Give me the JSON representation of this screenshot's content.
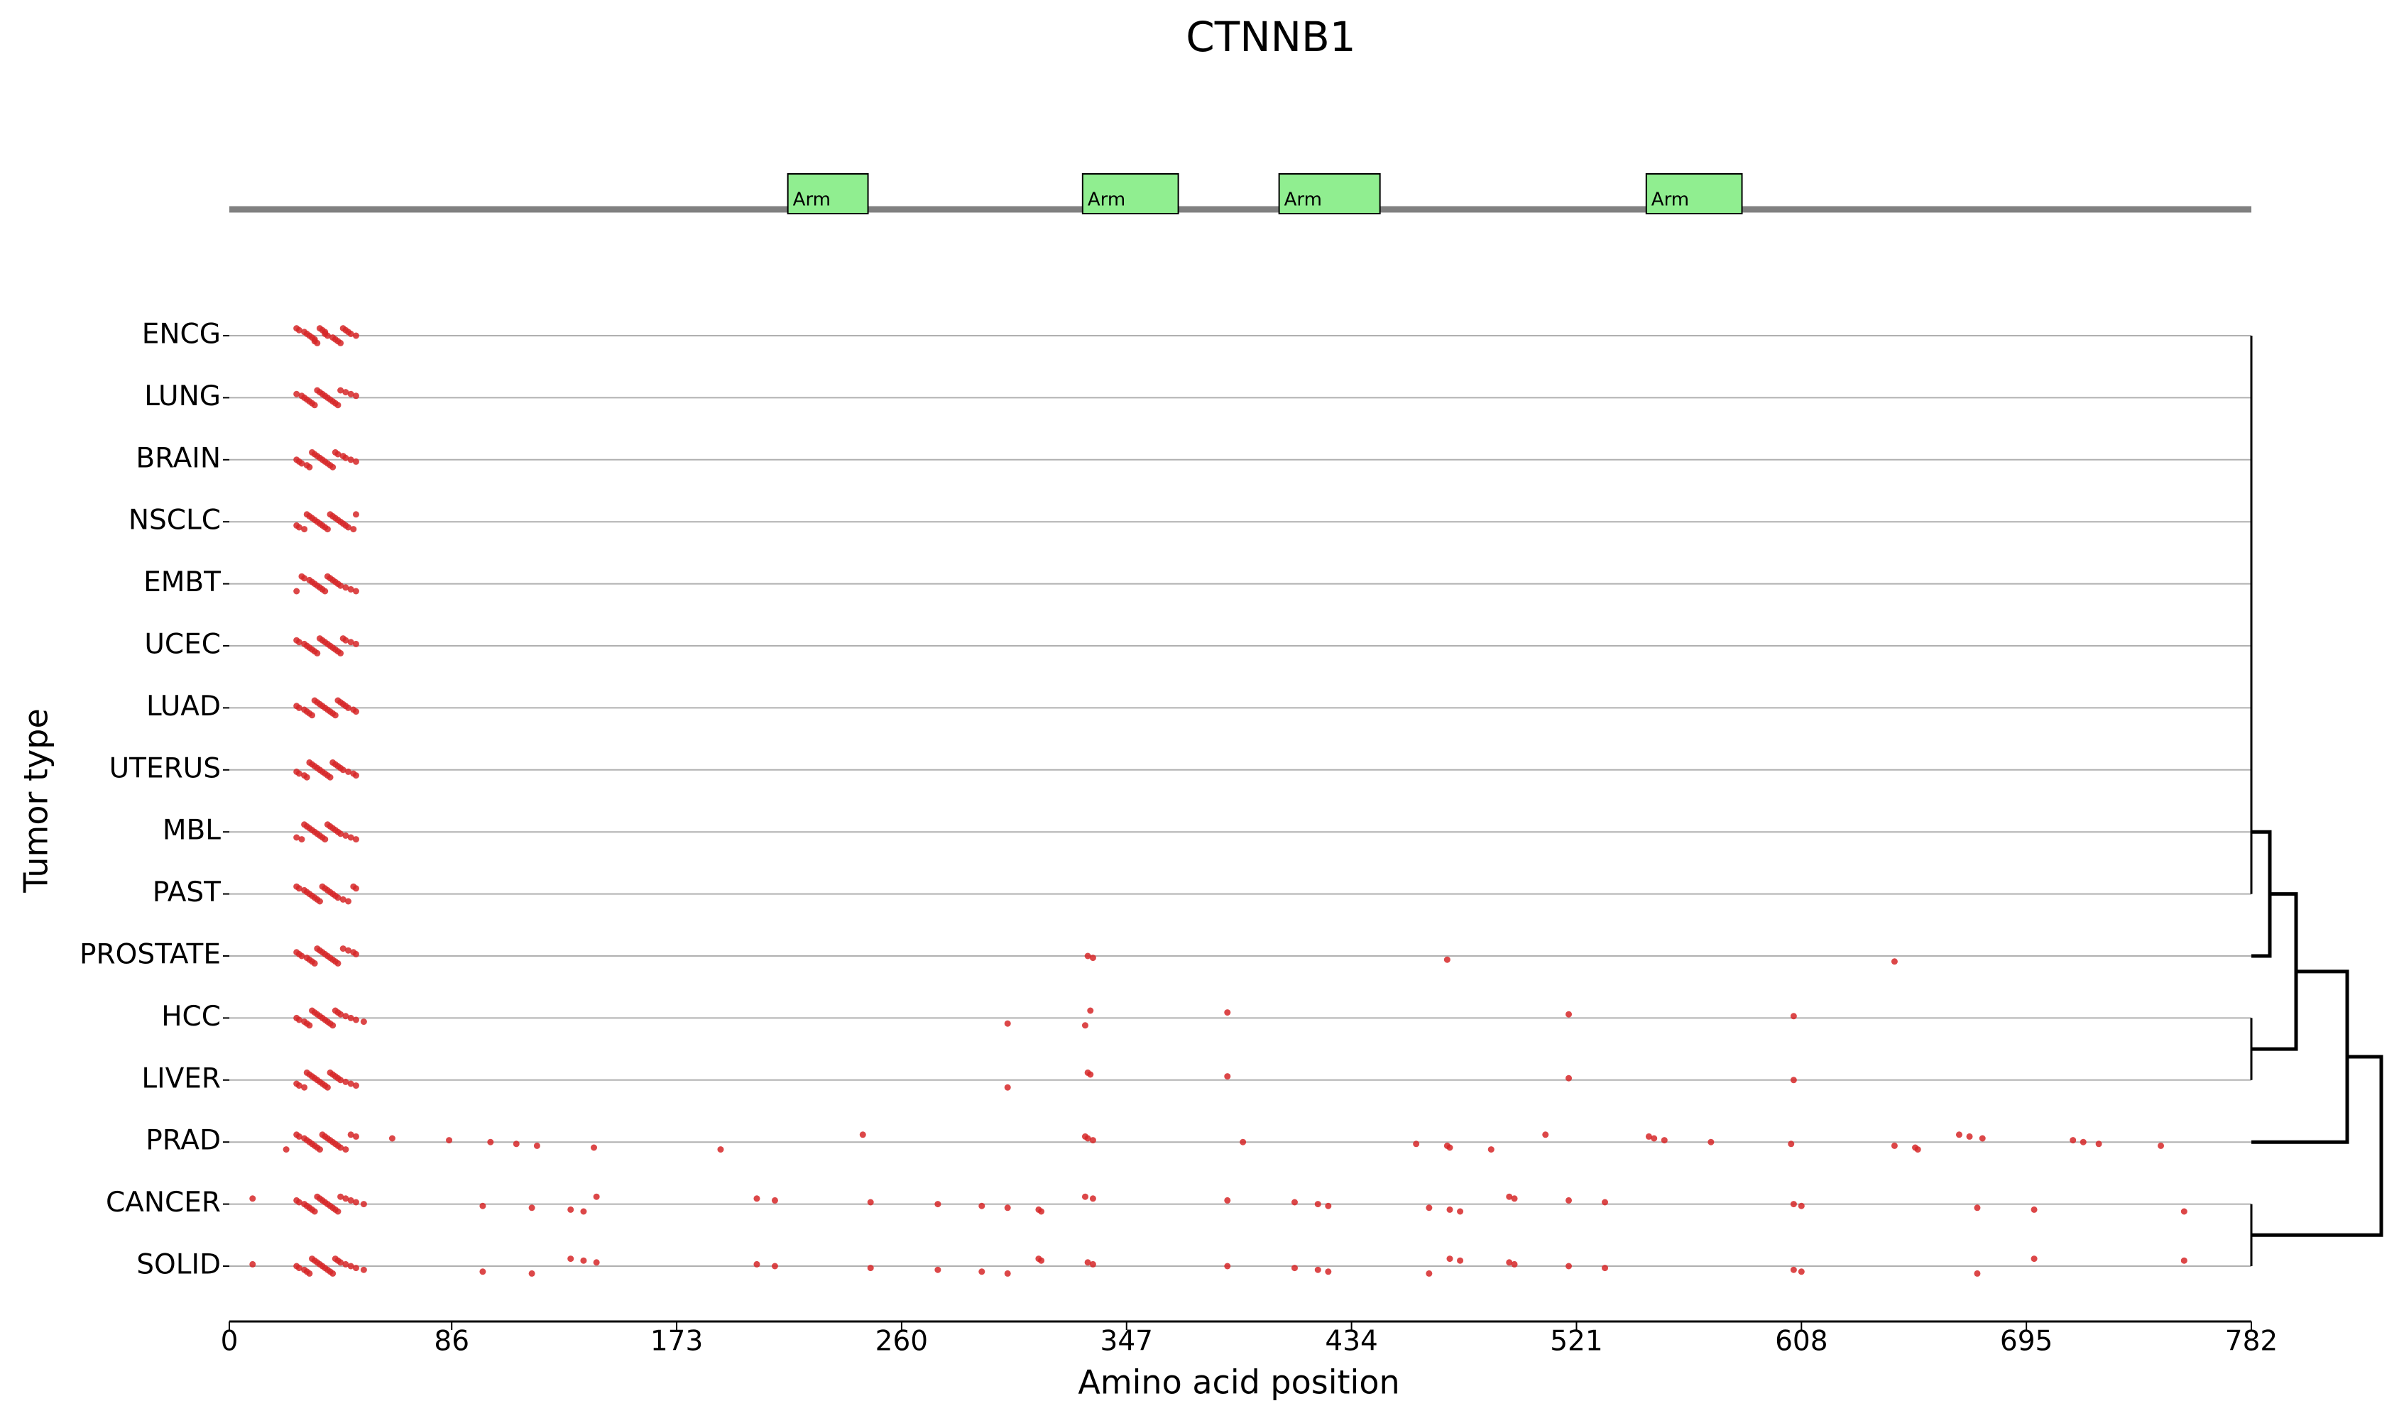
{
  "chart_data": {
    "type": "mutation-strip",
    "title": "CTNNB1",
    "x_label": "Amino acid position",
    "y_label": "Tumor type",
    "xlim": [
      0,
      782
    ],
    "xticks": [
      0,
      86,
      173,
      260,
      347,
      434,
      521,
      608,
      695,
      782
    ],
    "point_color": "#d62728",
    "domain_color": "#90ee90",
    "domains": [
      {
        "label": "Arm",
        "start": 216,
        "end": 247
      },
      {
        "label": "Arm",
        "start": 330,
        "end": 367
      },
      {
        "label": "Arm",
        "start": 406,
        "end": 445
      },
      {
        "label": "Arm",
        "start": 548,
        "end": 585
      }
    ],
    "categories": [
      "ENCG",
      "LUNG",
      "BRAIN",
      "NSCLC",
      "EMBT",
      "UCEC",
      "LUAD",
      "UTERUS",
      "MBL",
      "PAST",
      "PROSTATE",
      "HCC",
      "LIVER",
      "PRAD",
      "CANCER",
      "SOLID"
    ],
    "positions": [
      [
        26,
        27,
        29,
        30,
        31,
        32,
        33,
        33,
        34,
        35,
        36,
        37,
        37,
        38,
        40,
        41,
        42,
        43,
        44,
        45,
        46,
        47,
        49
      ],
      [
        26,
        28,
        29,
        30,
        31,
        32,
        33,
        34,
        35,
        36,
        37,
        38,
        39,
        40,
        41,
        42,
        43,
        45,
        47,
        49
      ],
      [
        26,
        27,
        28,
        30,
        31,
        32,
        33,
        34,
        35,
        36,
        37,
        38,
        39,
        40,
        41,
        42,
        44,
        45,
        47,
        49
      ],
      [
        26,
        27,
        29,
        30,
        31,
        32,
        33,
        34,
        35,
        36,
        37,
        38,
        39,
        40,
        41,
        42,
        43,
        44,
        45,
        46,
        48,
        49
      ],
      [
        26,
        28,
        29,
        31,
        32,
        33,
        34,
        35,
        36,
        37,
        38,
        39,
        40,
        41,
        42,
        43,
        45,
        47,
        49
      ],
      [
        26,
        27,
        29,
        30,
        31,
        32,
        33,
        34,
        35,
        36,
        37,
        38,
        39,
        40,
        41,
        42,
        43,
        44,
        45,
        47,
        49
      ],
      [
        26,
        27,
        29,
        30,
        31,
        32,
        33,
        34,
        35,
        36,
        37,
        38,
        39,
        40,
        41,
        42,
        43,
        44,
        45,
        46,
        48,
        49
      ],
      [
        26,
        27,
        29,
        30,
        31,
        32,
        33,
        34,
        35,
        36,
        37,
        38,
        39,
        40,
        41,
        42,
        43,
        44,
        46,
        48,
        49
      ],
      [
        26,
        28,
        29,
        30,
        31,
        32,
        33,
        34,
        35,
        36,
        37,
        38,
        39,
        40,
        41,
        42,
        43,
        45,
        47,
        49
      ],
      [
        26,
        27,
        29,
        30,
        31,
        32,
        33,
        34,
        35,
        36,
        37,
        38,
        39,
        40,
        41,
        42,
        44,
        46,
        48,
        49
      ],
      [
        26,
        27,
        28,
        30,
        31,
        32,
        33,
        34,
        35,
        36,
        37,
        38,
        39,
        40,
        41,
        42,
        44,
        46,
        48,
        49,
        332,
        334,
        471,
        644
      ],
      [
        26,
        27,
        29,
        30,
        31,
        32,
        33,
        34,
        35,
        36,
        37,
        38,
        39,
        40,
        41,
        42,
        43,
        45,
        47,
        49,
        52,
        301,
        331,
        333,
        386,
        518,
        605
      ],
      [
        26,
        27,
        29,
        30,
        31,
        32,
        33,
        34,
        35,
        36,
        37,
        38,
        39,
        40,
        41,
        42,
        43,
        45,
        47,
        49,
        301,
        332,
        333,
        386,
        518,
        605
      ],
      [
        22,
        26,
        27,
        29,
        30,
        31,
        32,
        33,
        34,
        35,
        36,
        37,
        38,
        39,
        40,
        41,
        42,
        43,
        45,
        47,
        49,
        63,
        85,
        101,
        111,
        119,
        141,
        190,
        245,
        331,
        332,
        334,
        392,
        459,
        471,
        472,
        488,
        509,
        549,
        551,
        555,
        573,
        604,
        644,
        652,
        653,
        669,
        673,
        678,
        713,
        717,
        723,
        747
      ],
      [
        9,
        26,
        27,
        29,
        30,
        31,
        32,
        33,
        34,
        35,
        36,
        37,
        38,
        39,
        40,
        41,
        42,
        43,
        45,
        47,
        49,
        52,
        98,
        117,
        132,
        137,
        142,
        204,
        211,
        248,
        274,
        291,
        301,
        313,
        314,
        331,
        334,
        386,
        412,
        421,
        425,
        464,
        472,
        476,
        495,
        497,
        518,
        532,
        605,
        608,
        676,
        698,
        756
      ],
      [
        9,
        26,
        27,
        29,
        30,
        31,
        32,
        33,
        34,
        35,
        36,
        37,
        38,
        39,
        40,
        41,
        42,
        43,
        45,
        47,
        49,
        52,
        98,
        117,
        132,
        137,
        142,
        204,
        211,
        248,
        274,
        291,
        301,
        313,
        314,
        332,
        334,
        386,
        412,
        421,
        425,
        464,
        472,
        476,
        495,
        497,
        518,
        532,
        605,
        608,
        676,
        698,
        756
      ]
    ]
  }
}
